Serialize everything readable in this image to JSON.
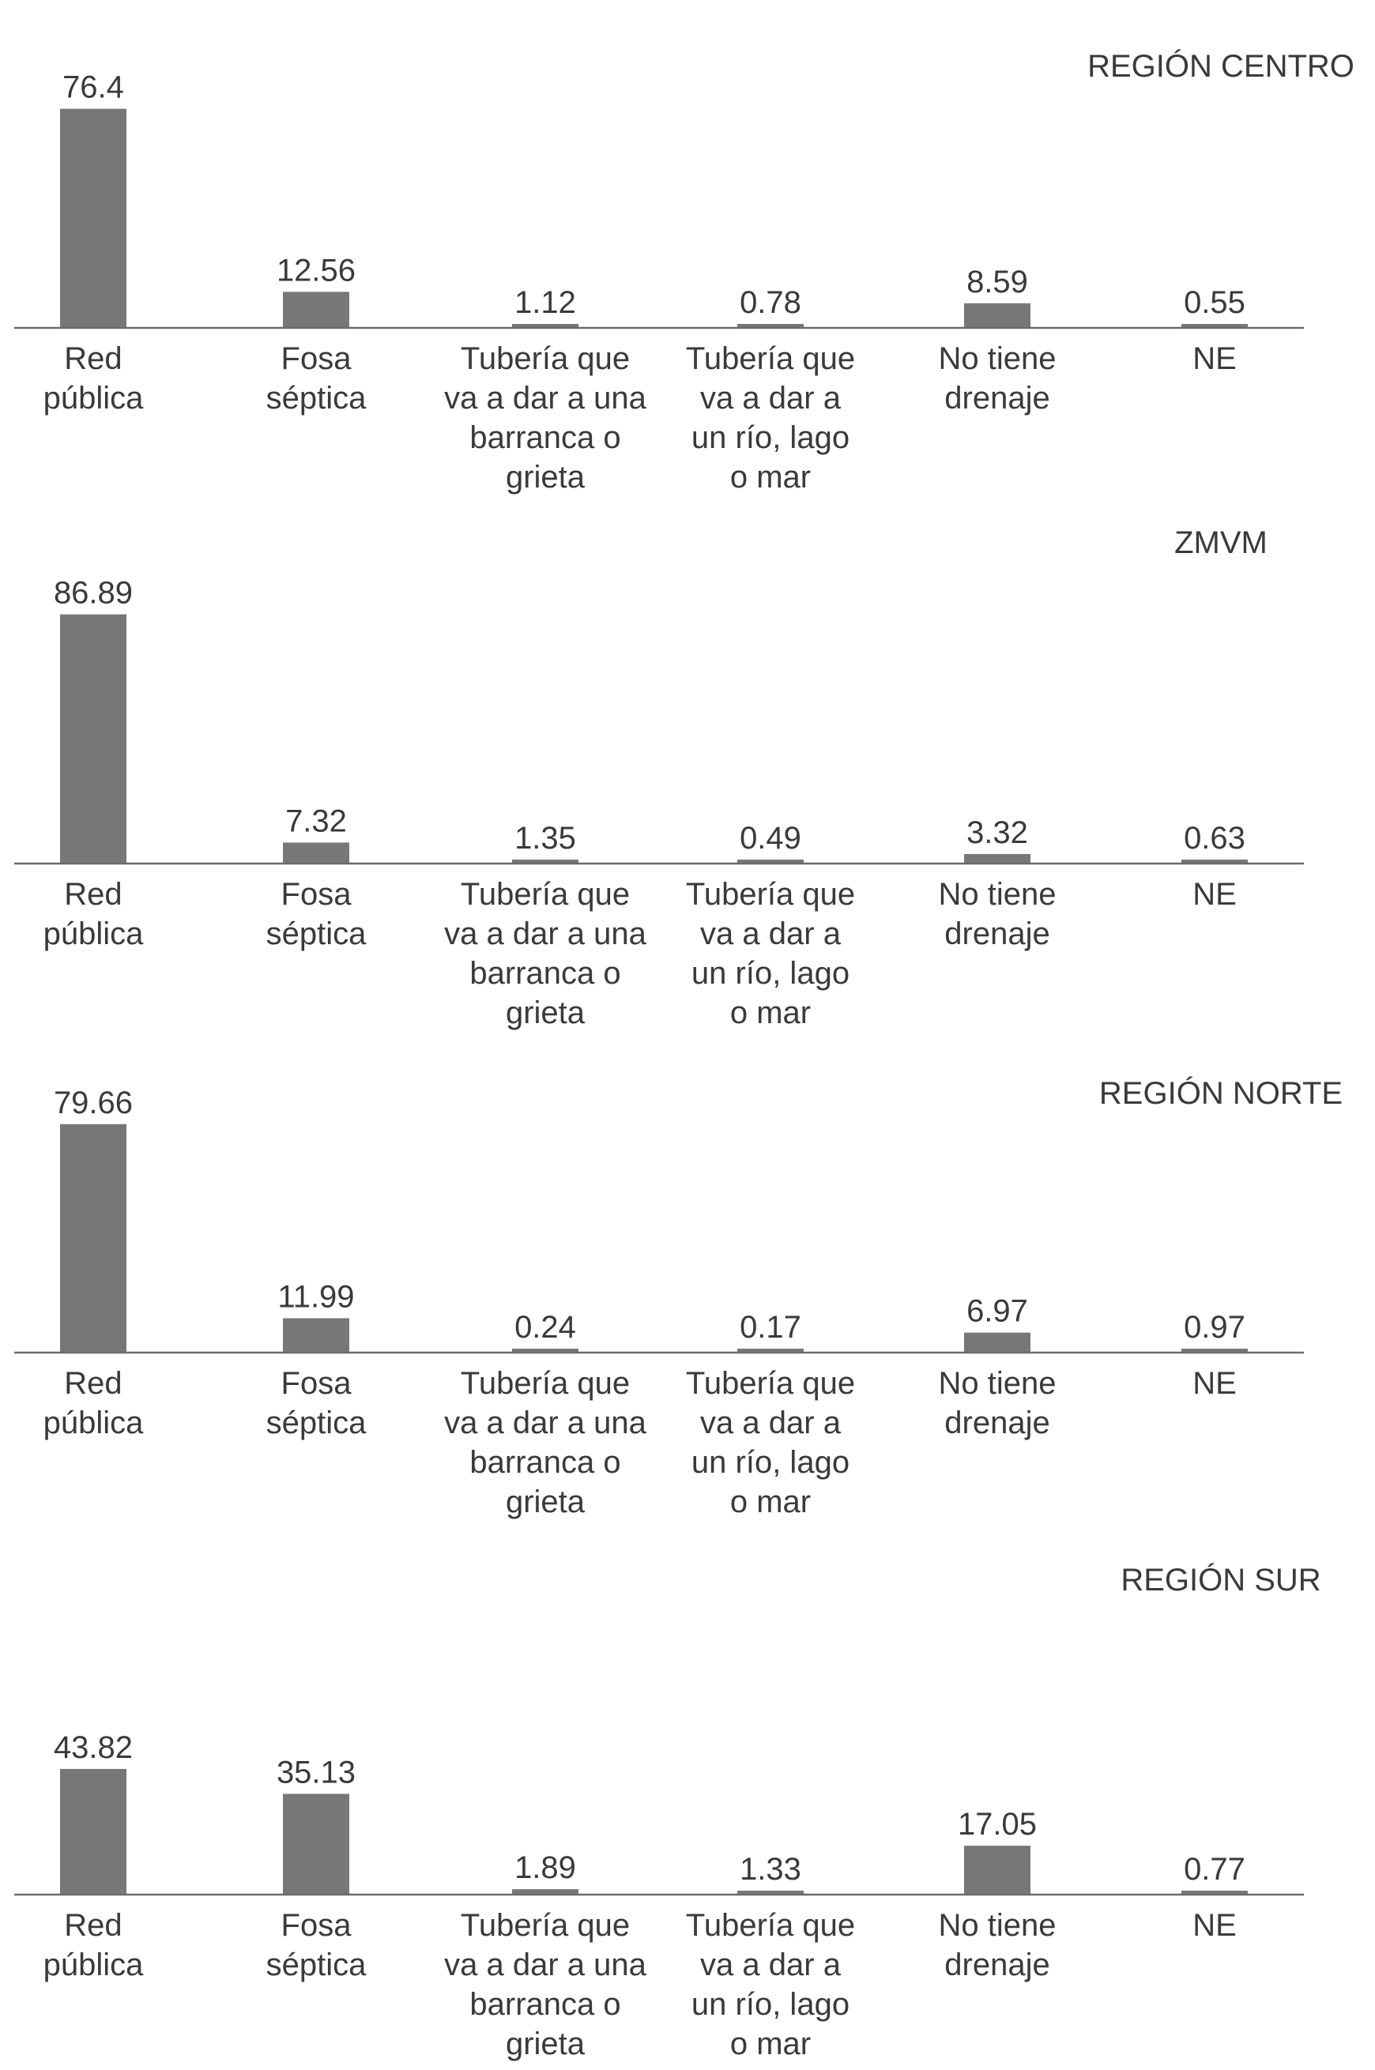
{
  "chart_data": [
    {
      "type": "bar",
      "title": "REGIÓN CENTRO",
      "categories": [
        [
          "Red",
          "pública"
        ],
        [
          "Fosa",
          "séptica"
        ],
        [
          "Tubería que",
          "va a dar a una",
          "barranca o",
          "grieta"
        ],
        [
          "Tubería que",
          "va a dar a",
          "un río, lago",
          "o mar"
        ],
        [
          "No tiene",
          "drenaje"
        ],
        [
          "NE"
        ]
      ],
      "values": [
        76.4,
        12.56,
        1.12,
        0.78,
        8.59,
        0.55
      ],
      "value_labels": [
        "76.4",
        "12.56",
        "1.12",
        "0.78",
        "8.59",
        "0.55"
      ],
      "bar_color": "#77777a"
    },
    {
      "type": "bar",
      "title": "ZMVM",
      "categories": [
        [
          "Red",
          "pública"
        ],
        [
          "Fosa",
          "séptica"
        ],
        [
          "Tubería que",
          "va a dar a una",
          "barranca o",
          "grieta"
        ],
        [
          "Tubería que",
          "va a dar a",
          "un río, lago",
          "o mar"
        ],
        [
          "No tiene",
          "drenaje"
        ],
        [
          "NE"
        ]
      ],
      "values": [
        86.89,
        7.32,
        1.35,
        0.49,
        3.32,
        0.63
      ],
      "value_labels": [
        "86.89",
        "7.32",
        "1.35",
        "0.49",
        "3.32",
        "0.63"
      ],
      "bar_color": "#77777a"
    },
    {
      "type": "bar",
      "title": "REGIÓN NORTE",
      "categories": [
        [
          "Red",
          "pública"
        ],
        [
          "Fosa",
          "séptica"
        ],
        [
          "Tubería que",
          "va a dar a una",
          "barranca o",
          "grieta"
        ],
        [
          "Tubería que",
          "va a dar a",
          "un río, lago",
          "o mar"
        ],
        [
          "No tiene",
          "drenaje"
        ],
        [
          "NE"
        ]
      ],
      "values": [
        79.66,
        11.99,
        0.24,
        0.17,
        6.97,
        0.97
      ],
      "value_labels": [
        "79.66",
        "11.99",
        "0.24",
        "0.17",
        "6.97",
        "0.97"
      ],
      "bar_color": "#77777a"
    },
    {
      "type": "bar",
      "title": "REGIÓN SUR",
      "categories": [
        [
          "Red",
          "pública"
        ],
        [
          "Fosa",
          "séptica"
        ],
        [
          "Tubería que",
          "va a dar a una",
          "barranca o",
          "grieta"
        ],
        [
          "Tubería que",
          "va a dar a",
          "un río, lago",
          "o mar"
        ],
        [
          "No tiene",
          "drenaje"
        ],
        [
          "NE"
        ]
      ],
      "values": [
        43.82,
        35.13,
        1.89,
        1.33,
        17.05,
        0.77
      ],
      "value_labels": [
        "43.82",
        "35.13",
        "1.89",
        "1.33",
        "17.05",
        "0.77"
      ],
      "bar_color": "#77777a"
    }
  ]
}
